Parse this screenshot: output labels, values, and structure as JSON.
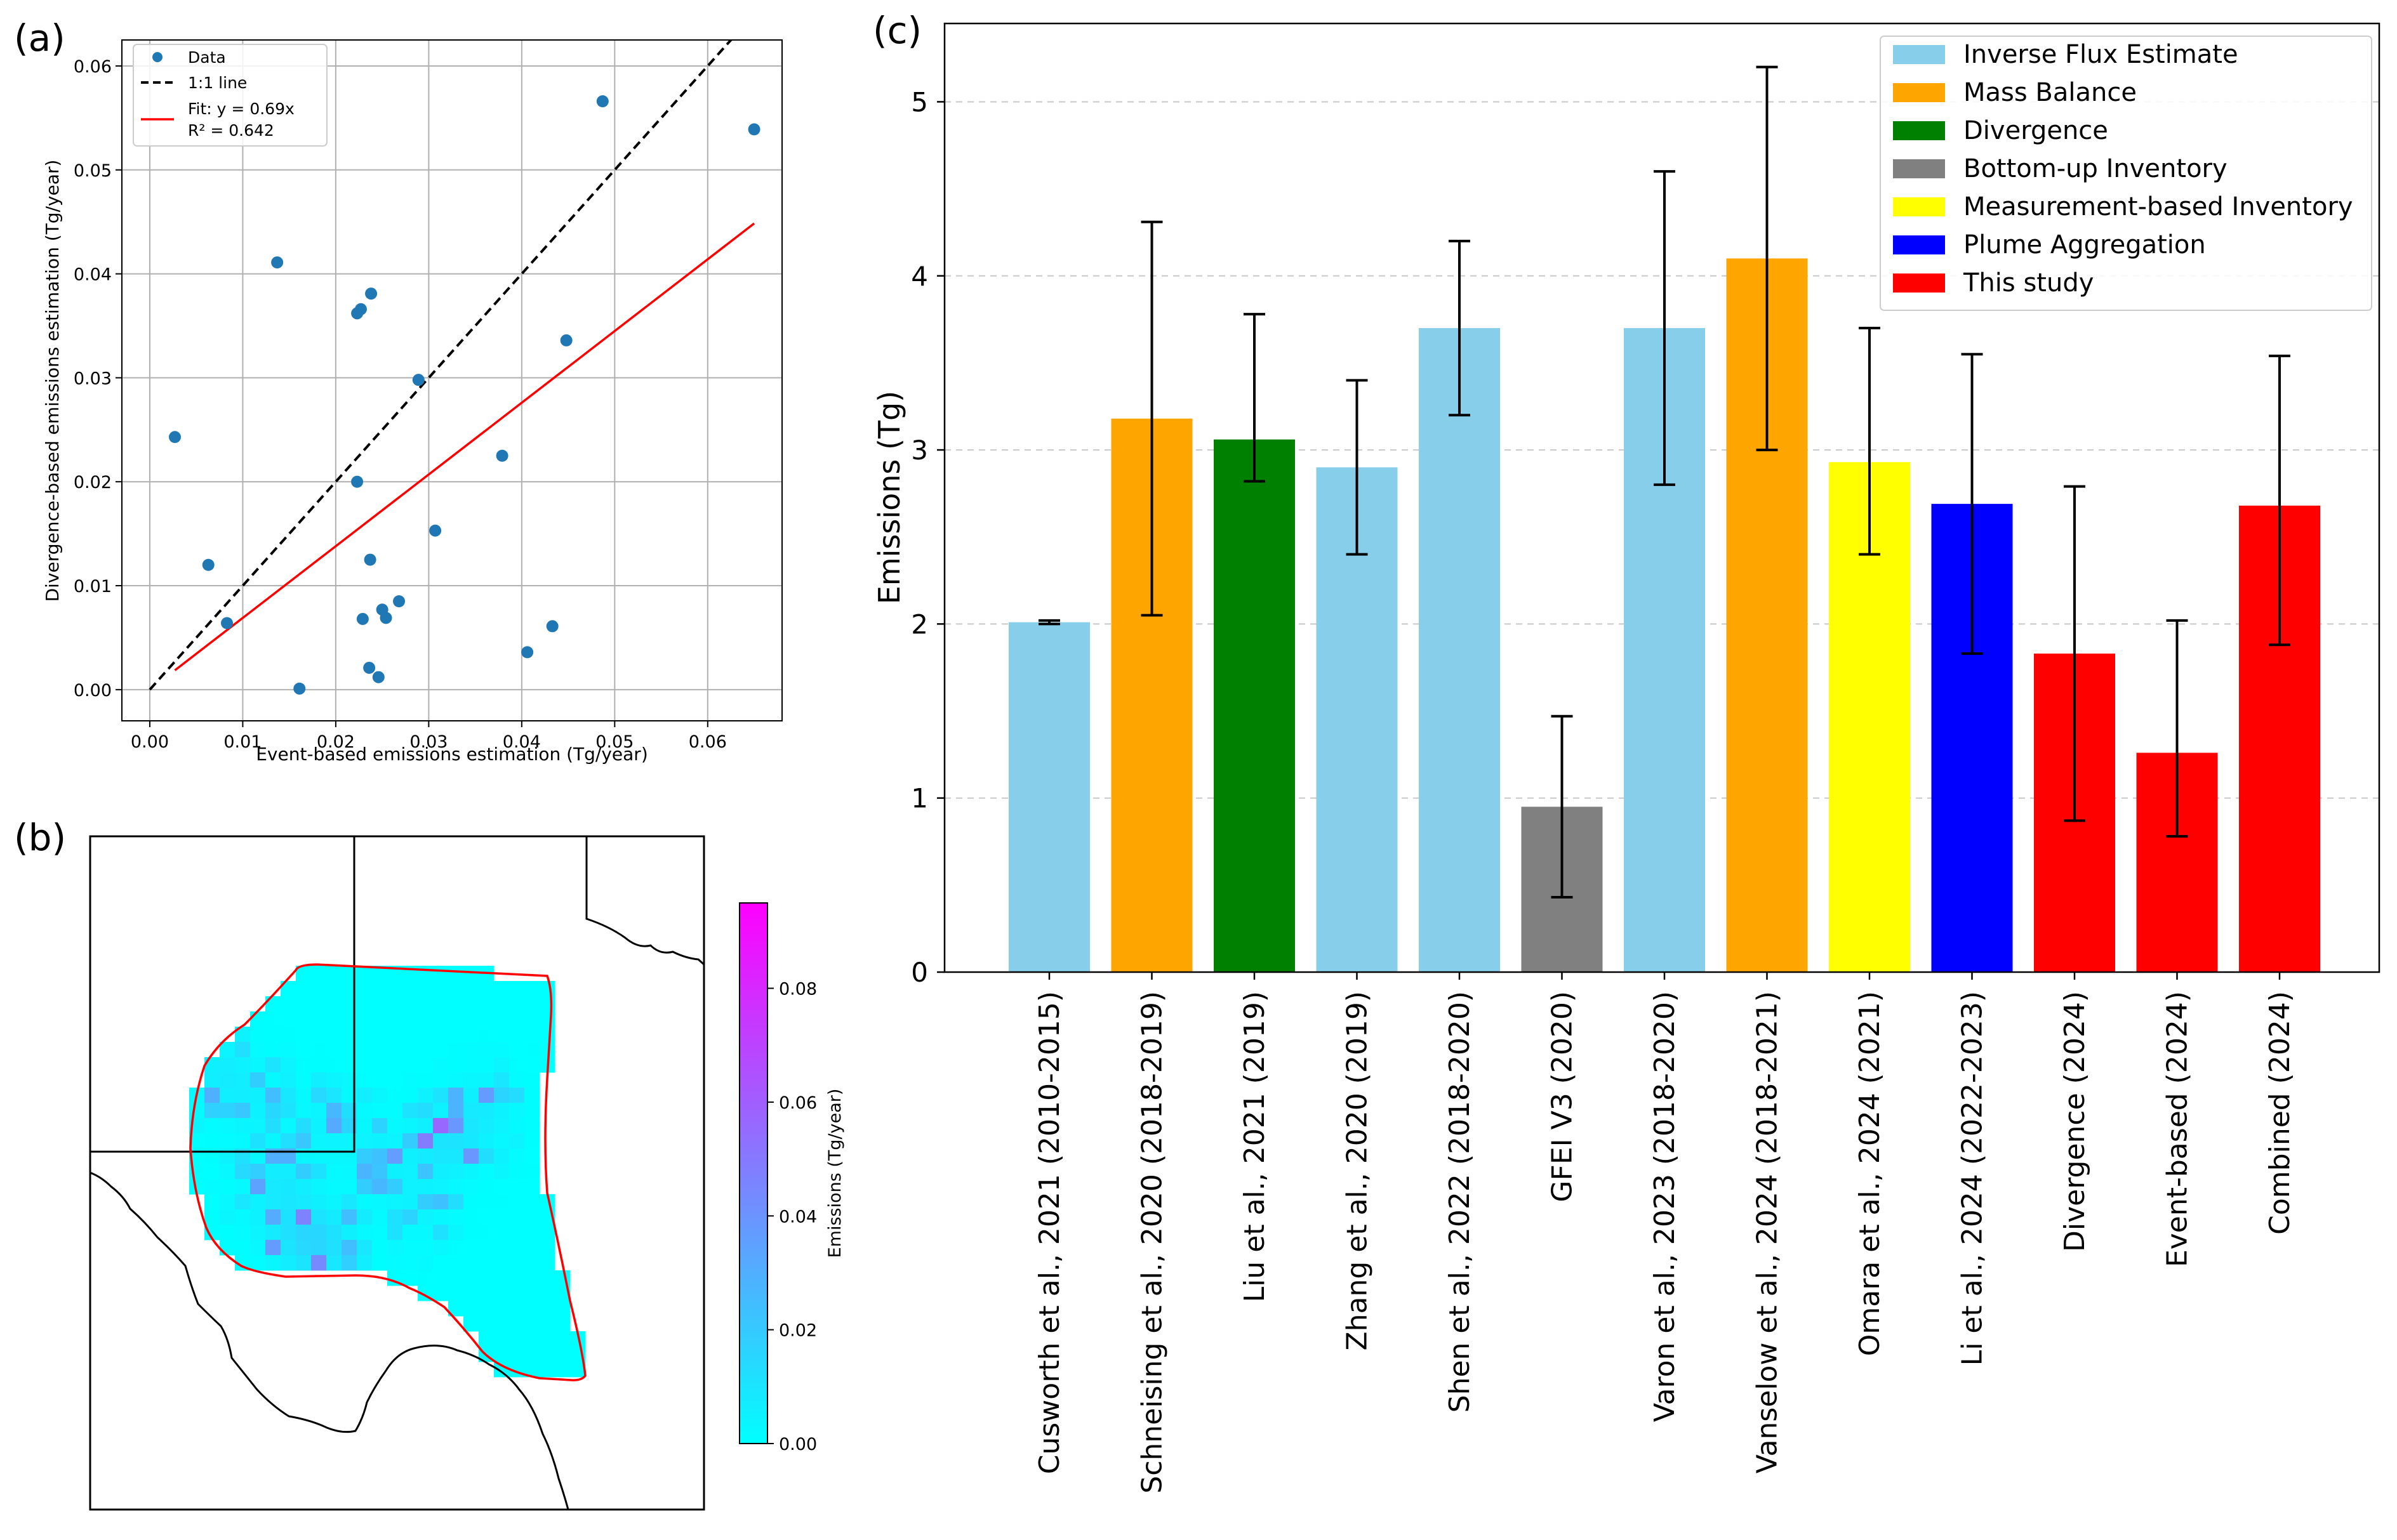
{
  "panels": {
    "a": "(a)",
    "b": "(b)",
    "c": "(c)"
  },
  "colors": {
    "scatter": "#1f77b4",
    "fit": "#ff0000",
    "identity": "#000000",
    "Inverse Flux Estimate": "#87ceeb",
    "Mass Balance": "#ffa500",
    "Divergence": "#008000",
    "Bottom-up Inventory": "#808080",
    "Measurement-based Inventory": "#ffff00",
    "Plume Aggregation": "#0000ff",
    "This study": "#ff0000"
  },
  "chart_data": [
    {
      "id": "a",
      "type": "scatter",
      "title": "",
      "xlabel": "Event-based emissions estimation (Tg/year)",
      "ylabel": "Divergence-based emissions estimation (Tg/year)",
      "xlim": [
        -0.003,
        0.068
      ],
      "ylim": [
        -0.003,
        0.0625
      ],
      "xticks": [
        0.0,
        0.01,
        0.02,
        0.03,
        0.04,
        0.05,
        0.06
      ],
      "xtick_labels": [
        "0.00",
        "0.01",
        "0.02",
        "0.03",
        "0.04",
        "0.05",
        "0.06"
      ],
      "yticks": [
        0.0,
        0.01,
        0.02,
        0.03,
        0.04,
        0.05,
        0.06
      ],
      "ytick_labels": [
        "0.00",
        "0.01",
        "0.02",
        "0.03",
        "0.04",
        "0.05",
        "0.06"
      ],
      "grid": true,
      "legend_position": "upper-left",
      "legend": [
        "Data",
        "1:1 line",
        "Fit: y = 0.69x",
        "R² = 0.642"
      ],
      "points": [
        [
          0.0027,
          0.0243
        ],
        [
          0.0063,
          0.012
        ],
        [
          0.0083,
          0.0064
        ],
        [
          0.0137,
          0.0411
        ],
        [
          0.0161,
          0.0001
        ],
        [
          0.0223,
          0.0362
        ],
        [
          0.0227,
          0.0366
        ],
        [
          0.0223,
          0.02
        ],
        [
          0.0229,
          0.0068
        ],
        [
          0.0238,
          0.0381
        ],
        [
          0.0237,
          0.0125
        ],
        [
          0.0236,
          0.0021
        ],
        [
          0.0246,
          0.0012
        ],
        [
          0.025,
          0.0077
        ],
        [
          0.0254,
          0.0069
        ],
        [
          0.0268,
          0.0085
        ],
        [
          0.0289,
          0.0298
        ],
        [
          0.0307,
          0.0153
        ],
        [
          0.0379,
          0.0225
        ],
        [
          0.0406,
          0.0036
        ],
        [
          0.0433,
          0.0061
        ],
        [
          0.0448,
          0.0336
        ],
        [
          0.0487,
          0.0566
        ],
        [
          0.065,
          0.0539
        ]
      ],
      "identity_line": {
        "from": 0.0,
        "to": 0.065
      },
      "fit_line": {
        "slope": 0.69,
        "from": 0.0027,
        "to": 0.065
      }
    },
    {
      "id": "b",
      "type": "heatmap",
      "title": "",
      "colorbar_label": "Emissions (Tg/year)",
      "colorbar_range": [
        0,
        0.095
      ],
      "colorbar_ticks": [
        0.0,
        0.02,
        0.04,
        0.06,
        0.08
      ],
      "colorbar_tick_labels": [
        "0.00",
        "0.02",
        "0.04",
        "0.06",
        "0.08"
      ],
      "colormap": [
        "#00ffff",
        "#ff00ff"
      ]
    },
    {
      "id": "c",
      "type": "bar",
      "title": "",
      "ylabel": "Emissions (Tg)",
      "xlabel": "",
      "ylim": [
        0,
        5.45
      ],
      "yticks": [
        0,
        1,
        2,
        3,
        4,
        5
      ],
      "ytick_labels": [
        "0",
        "1",
        "2",
        "3",
        "4",
        "5"
      ],
      "grid": "y-dashed",
      "legend_position": "top-right",
      "legend": [
        "Inverse Flux Estimate",
        "Mass Balance",
        "Divergence",
        "Bottom-up Inventory",
        "Measurement-based Inventory",
        "Plume Aggregation",
        "This study"
      ],
      "categories": [
        "Cusworth et al., 2021 (2010-2015)",
        "Schneising et al., 2020 (2018-2019)",
        "Liu et al., 2021 (2019)",
        "Zhang et al., 2020 (2019)",
        "Shen et al., 2022 (2018-2020)",
        "GFEI V3 (2020)",
        "Varon et al., 2023 (2018-2020)",
        "Vanselow et al., 2024 (2018-2021)",
        "Omara et al., 2024 (2021)",
        "Li et al., 2024 (2022-2023)",
        "Divergence (2024)",
        "Event-based (2024)",
        "Combined (2024)"
      ],
      "values": [
        2.01,
        3.18,
        3.06,
        2.9,
        3.7,
        0.95,
        3.7,
        4.1,
        2.93,
        2.69,
        1.83,
        1.26,
        2.68
      ],
      "error_low": [
        2.0,
        2.05,
        2.82,
        2.4,
        3.2,
        0.43,
        2.8,
        3.0,
        2.4,
        1.83,
        0.87,
        0.78,
        1.88
      ],
      "error_high": [
        2.02,
        4.31,
        3.78,
        3.4,
        4.2,
        1.47,
        4.6,
        5.2,
        3.7,
        3.55,
        2.79,
        2.02,
        3.54
      ],
      "groups": [
        "Inverse Flux Estimate",
        "Mass Balance",
        "Divergence",
        "Inverse Flux Estimate",
        "Inverse Flux Estimate",
        "Bottom-up Inventory",
        "Inverse Flux Estimate",
        "Mass Balance",
        "Measurement-based Inventory",
        "Plume Aggregation",
        "This study",
        "This study",
        "This study"
      ]
    }
  ]
}
